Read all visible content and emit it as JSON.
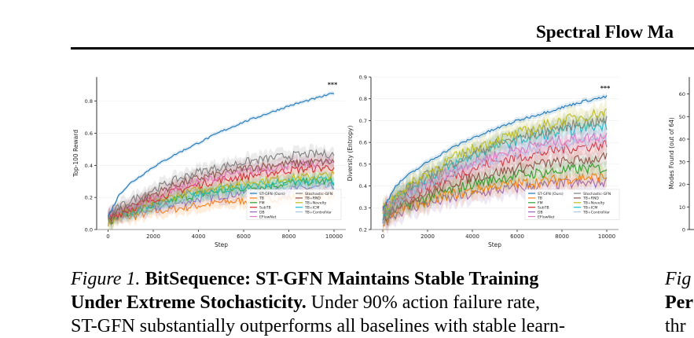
{
  "header": {
    "title": "Spectral Flow Ma"
  },
  "figure": {
    "caption_label": "Figure 1.",
    "caption_title_1": "BitSequence: ST-GFN Maintains Stable Training",
    "caption_title_2": "Under Extreme Stochasticity.",
    "caption_text_1": " Under 90% action failure rate,",
    "caption_text_2": "ST-GFN substantially outperforms all baselines with stable learn-",
    "next_caption_label": "Fig",
    "next_caption_bold": "Per",
    "next_caption_text": "thr"
  },
  "colors": {
    "ST-GFN (Ours)": "#1f77b4",
    "TB": "#ff7f0e",
    "FM": "#2ca02c",
    "SubTB": "#d62728",
    "DB": "#9467bd",
    "EFlowNet": "#e377c2",
    "Stochastic-GFN": "#7f7f7f",
    "TB+RND": "#8c564b",
    "TB+Novelty": "#bcbd22",
    "TB+ICM": "#17becf",
    "TB+ControlVar": "#aec7e8"
  },
  "chart_data": [
    {
      "type": "line",
      "xlabel": "Step",
      "ylabel": "Top-100 Reward",
      "xlim": [
        0,
        10000
      ],
      "ylim": [
        0,
        0.95
      ],
      "x_ticks": [
        "0",
        "2000",
        "4000",
        "6000",
        "8000",
        "10000"
      ],
      "y_ticks": [
        "0.0",
        "0.2",
        "0.4",
        "0.6",
        "0.8"
      ],
      "annotation": "***",
      "legend_position": "lower-right",
      "legend": [
        "ST-GFN (Ours)",
        "TB",
        "FM",
        "SubTB",
        "DB",
        "EFlowNet",
        "Stochastic-GFN",
        "TB+RND",
        "TB+Novelty",
        "TB+ICM",
        "TB+ControlVar"
      ],
      "x": [
        0,
        500,
        1000,
        2000,
        3000,
        4000,
        5000,
        6000,
        7000,
        8000,
        9000,
        10000
      ],
      "series": [
        {
          "name": "ST-GFN (Ours)",
          "values": [
            0.08,
            0.22,
            0.29,
            0.39,
            0.47,
            0.54,
            0.61,
            0.67,
            0.72,
            0.77,
            0.81,
            0.85
          ]
        },
        {
          "name": "Stochastic-GFN",
          "values": [
            0.09,
            0.14,
            0.18,
            0.25,
            0.31,
            0.36,
            0.39,
            0.42,
            0.44,
            0.46,
            0.47,
            0.47
          ]
        },
        {
          "name": "TB+RND",
          "values": [
            0.08,
            0.12,
            0.15,
            0.22,
            0.28,
            0.32,
            0.35,
            0.38,
            0.4,
            0.41,
            0.42,
            0.42
          ]
        },
        {
          "name": "EFlowNet",
          "values": [
            0.07,
            0.11,
            0.14,
            0.2,
            0.26,
            0.3,
            0.33,
            0.36,
            0.38,
            0.4,
            0.41,
            0.42
          ]
        },
        {
          "name": "SubTB",
          "values": [
            0.07,
            0.1,
            0.13,
            0.19,
            0.24,
            0.28,
            0.31,
            0.33,
            0.35,
            0.37,
            0.38,
            0.39
          ]
        },
        {
          "name": "TB+Novelty",
          "values": [
            0.07,
            0.1,
            0.12,
            0.17,
            0.21,
            0.25,
            0.27,
            0.29,
            0.31,
            0.32,
            0.33,
            0.34
          ]
        },
        {
          "name": "TB+ICM",
          "values": [
            0.07,
            0.09,
            0.11,
            0.16,
            0.2,
            0.23,
            0.25,
            0.27,
            0.28,
            0.3,
            0.31,
            0.31
          ]
        },
        {
          "name": "FM",
          "values": [
            0.07,
            0.09,
            0.11,
            0.15,
            0.19,
            0.22,
            0.24,
            0.26,
            0.27,
            0.29,
            0.3,
            0.3
          ]
        },
        {
          "name": "TB+ControlVar",
          "values": [
            0.07,
            0.09,
            0.1,
            0.14,
            0.18,
            0.21,
            0.23,
            0.25,
            0.26,
            0.27,
            0.28,
            0.29
          ]
        },
        {
          "name": "DB",
          "values": [
            0.06,
            0.08,
            0.1,
            0.13,
            0.16,
            0.19,
            0.21,
            0.23,
            0.24,
            0.25,
            0.26,
            0.27
          ]
        },
        {
          "name": "TB",
          "values": [
            0.06,
            0.07,
            0.08,
            0.11,
            0.13,
            0.15,
            0.17,
            0.18,
            0.19,
            0.2,
            0.21,
            0.22
          ]
        }
      ]
    },
    {
      "type": "line",
      "xlabel": "Step",
      "ylabel": "Diversity (Entropy)",
      "xlim": [
        0,
        10000
      ],
      "ylim": [
        0.2,
        0.9
      ],
      "x_ticks": [
        "0",
        "2000",
        "4000",
        "6000",
        "8000",
        "10000"
      ],
      "y_ticks": [
        "0.2",
        "0.3",
        "0.4",
        "0.5",
        "0.6",
        "0.7",
        "0.8",
        "0.9"
      ],
      "annotation": "***",
      "legend_position": "lower-right",
      "legend": [
        "ST-GFN (Ours)",
        "TB",
        "FM",
        "SubTB",
        "DB",
        "EFlowNet",
        "Stochastic-GFN",
        "TB+RND",
        "TB+Novelty",
        "TB+ICM",
        "TB+ControlVar"
      ],
      "x": [
        0,
        500,
        1000,
        2000,
        3000,
        4000,
        5000,
        6000,
        7000,
        8000,
        9000,
        10000
      ],
      "series": [
        {
          "name": "ST-GFN (Ours)",
          "values": [
            0.29,
            0.39,
            0.44,
            0.51,
            0.57,
            0.62,
            0.66,
            0.7,
            0.73,
            0.76,
            0.79,
            0.81
          ]
        },
        {
          "name": "TB+Novelty",
          "values": [
            0.28,
            0.35,
            0.39,
            0.46,
            0.52,
            0.57,
            0.61,
            0.64,
            0.67,
            0.7,
            0.72,
            0.74
          ]
        },
        {
          "name": "Stochastic-GFN",
          "values": [
            0.28,
            0.34,
            0.38,
            0.45,
            0.5,
            0.55,
            0.59,
            0.62,
            0.65,
            0.67,
            0.69,
            0.7
          ]
        },
        {
          "name": "TB+ICM",
          "values": [
            0.28,
            0.34,
            0.38,
            0.44,
            0.49,
            0.54,
            0.58,
            0.61,
            0.63,
            0.65,
            0.67,
            0.68
          ]
        },
        {
          "name": "EFlowNet",
          "values": [
            0.27,
            0.33,
            0.36,
            0.42,
            0.47,
            0.51,
            0.54,
            0.57,
            0.59,
            0.61,
            0.62,
            0.63
          ]
        },
        {
          "name": "TB+ControlVar",
          "values": [
            0.27,
            0.32,
            0.35,
            0.41,
            0.45,
            0.49,
            0.52,
            0.55,
            0.57,
            0.59,
            0.6,
            0.61
          ]
        },
        {
          "name": "SubTB",
          "values": [
            0.27,
            0.32,
            0.35,
            0.4,
            0.44,
            0.48,
            0.51,
            0.53,
            0.55,
            0.57,
            0.58,
            0.59
          ]
        },
        {
          "name": "TB+RND",
          "values": [
            0.26,
            0.3,
            0.33,
            0.37,
            0.41,
            0.44,
            0.46,
            0.48,
            0.5,
            0.51,
            0.52,
            0.53
          ]
        },
        {
          "name": "FM",
          "values": [
            0.26,
            0.29,
            0.31,
            0.35,
            0.38,
            0.41,
            0.43,
            0.45,
            0.46,
            0.47,
            0.48,
            0.48
          ]
        },
        {
          "name": "TB",
          "values": [
            0.25,
            0.28,
            0.3,
            0.33,
            0.36,
            0.38,
            0.4,
            0.41,
            0.42,
            0.43,
            0.44,
            0.44
          ]
        },
        {
          "name": "DB",
          "values": [
            0.25,
            0.27,
            0.29,
            0.32,
            0.34,
            0.36,
            0.38,
            0.39,
            0.4,
            0.41,
            0.41,
            0.42
          ]
        }
      ]
    },
    {
      "type": "line",
      "ylabel": "Modes Found (out of 64)",
      "y_ticks": [
        "0",
        "10",
        "20",
        "30",
        "40",
        "50",
        "60"
      ],
      "ylim": [
        0,
        64
      ]
    }
  ]
}
